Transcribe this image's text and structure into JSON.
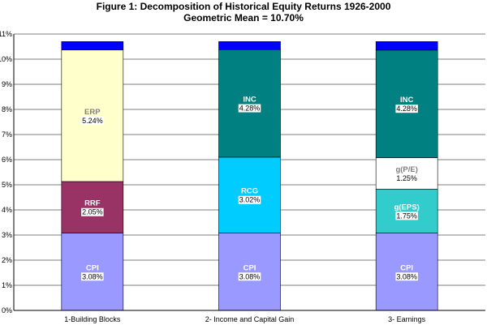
{
  "chart_data": {
    "type": "bar",
    "stacked": true,
    "title": "Figure 1: Decomposition of Historical Equity Returns 1926-2000",
    "subtitle": "Geometric Mean = 10.70%",
    "ylim": [
      0,
      11
    ],
    "ytick_labels": [
      "0%",
      "1%",
      "2%",
      "3%",
      "4%",
      "5%",
      "6%",
      "7%",
      "8%",
      "9%",
      "10%",
      "11%"
    ],
    "grid": true,
    "categories": [
      "1-Building Blocks",
      "2- Income and Capital Gain",
      "3- Earnings"
    ],
    "bars": [
      {
        "category": "1-Building Blocks",
        "segments": [
          {
            "name": "CPI",
            "value": 3.08,
            "label": "3.08%",
            "color": "#9999ff",
            "label_color": "#ffffff"
          },
          {
            "name": "RRF",
            "value": 2.05,
            "label": "2.05%",
            "color": "#993366",
            "label_color": "#ffffff"
          },
          {
            "name": "ERP",
            "value": 5.24,
            "label": "5.24%",
            "color": "#ffffcc",
            "label_color": "#808080"
          },
          {
            "name": "",
            "value": 0.33,
            "label": "",
            "color": "#0000ff",
            "label_color": "#ffffff"
          }
        ]
      },
      {
        "category": "2- Income and Capital Gain",
        "segments": [
          {
            "name": "CPI",
            "value": 3.08,
            "label": "3.08%",
            "color": "#9999ff",
            "label_color": "#ffffff"
          },
          {
            "name": "RCG",
            "value": 3.02,
            "label": "3.02%",
            "color": "#00ccff",
            "label_color": "#ffffff"
          },
          {
            "name": "INC",
            "value": 4.28,
            "label": "4.28%",
            "color": "#008080",
            "label_color": "#ffffff"
          },
          {
            "name": "",
            "value": 0.32,
            "label": "",
            "color": "#0000ff",
            "label_color": "#ffffff"
          }
        ]
      },
      {
        "category": "3- Earnings",
        "segments": [
          {
            "name": "CPI",
            "value": 3.08,
            "label": "3.08%",
            "color": "#9999ff",
            "label_color": "#ffffff"
          },
          {
            "name": "g(EPS)",
            "value": 1.75,
            "label": "1.75%",
            "color": "#33cccc",
            "label_color": "#ffffff"
          },
          {
            "name": "g(P/E)",
            "value": 1.25,
            "label": "1.25%",
            "color": "#ffffff",
            "label_color": "#808080"
          },
          {
            "name": "INC",
            "value": 4.28,
            "label": "4.28%",
            "color": "#008080",
            "label_color": "#ffffff"
          },
          {
            "name": "",
            "value": 0.34,
            "label": "",
            "color": "#0000ff",
            "label_color": "#ffffff"
          }
        ]
      }
    ]
  }
}
